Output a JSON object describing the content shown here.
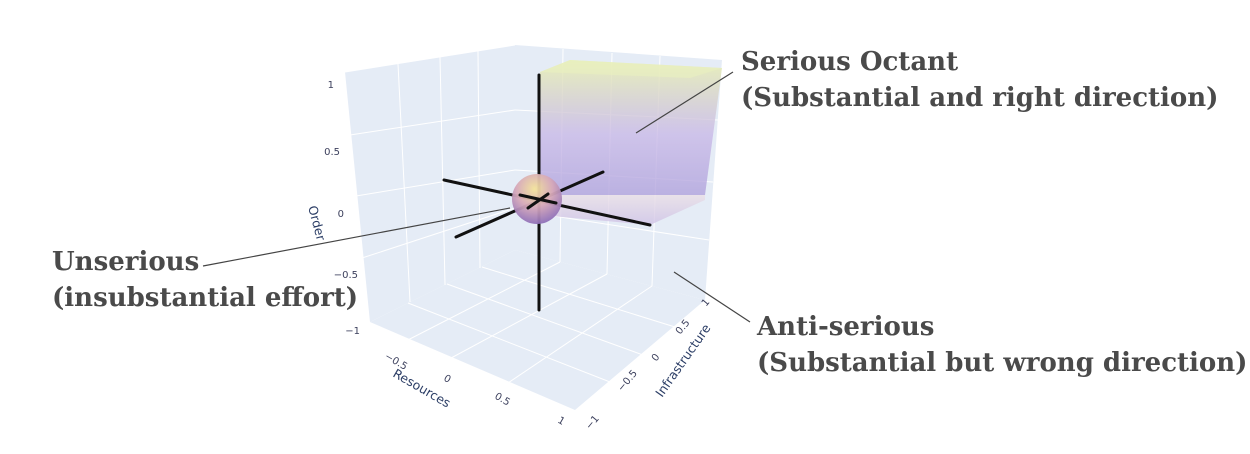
{
  "annotations": {
    "serious": {
      "title": "Serious Octant",
      "subtitle": "(Substantial and right direction)"
    },
    "unserious": {
      "title": "Unserious",
      "subtitle": "(insubstantial effort)"
    },
    "anti_serious": {
      "title": "Anti-serious",
      "subtitle": "(Substantial but wrong direction)"
    }
  },
  "axes": {
    "z": {
      "label": "Order",
      "ticks": [
        "1",
        "0.5",
        "0",
        "−0.5",
        "−1"
      ]
    },
    "x": {
      "label": "Resources",
      "ticks": [
        "−0.5",
        "0",
        "0.5",
        "1"
      ]
    },
    "y": {
      "label": "Infrastructure",
      "ticks": [
        "1",
        "0.5",
        "0",
        "−0.5",
        "−1"
      ]
    }
  },
  "colors": {
    "scene_background": "#e5ecf6",
    "grid": "#ffffff",
    "axis_lines": "#111111",
    "octant_top": "#e6f0b8",
    "octant_bottom": "#b7a6dc"
  }
}
